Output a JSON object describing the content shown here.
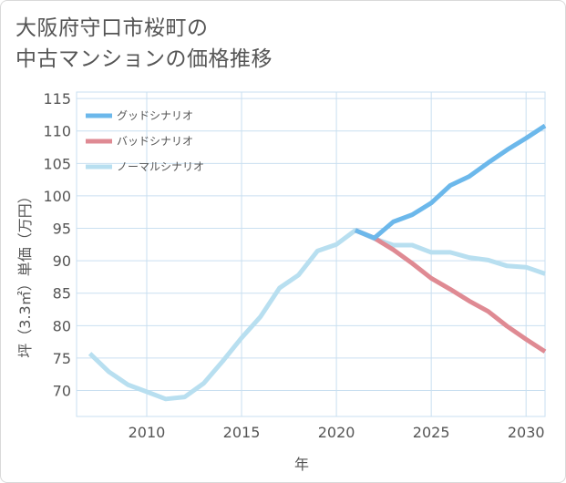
{
  "title": {
    "line1": "大阪府守口市桜町の",
    "line2": "中古マンションの価格推移"
  },
  "chart_data": {
    "type": "line",
    "xlabel": "年",
    "ylabel": "坪（3.3㎡）単価（万円）",
    "xlim": [
      2006.3,
      2031
    ],
    "ylim": [
      66,
      116
    ],
    "xticks": [
      2010,
      2015,
      2020,
      2025,
      2030
    ],
    "yticks": [
      70,
      75,
      80,
      85,
      90,
      95,
      100,
      105,
      110,
      115
    ],
    "grid": true,
    "legend_position": "top-left",
    "series": [
      {
        "name": "グッドシナリオ",
        "color": "#6cb8eb",
        "x": [
          2021,
          2022,
          2023,
          2024,
          2025,
          2026,
          2027,
          2028,
          2029,
          2030,
          2031
        ],
        "y": [
          94.7,
          93.5,
          96.0,
          97.1,
          98.9,
          101.6,
          103.0,
          105.1,
          107.1,
          108.9,
          110.8
        ]
      },
      {
        "name": "バッドシナリオ",
        "color": "#df8a93",
        "x": [
          2021,
          2022,
          2023,
          2024,
          2025,
          2026,
          2027,
          2028,
          2029,
          2030,
          2031
        ],
        "y": [
          94.7,
          93.5,
          91.7,
          89.6,
          87.3,
          85.6,
          83.8,
          82.2,
          79.9,
          77.9,
          76.0
        ]
      },
      {
        "name": "ノーマルシナリオ",
        "color": "#b8dff0",
        "x": [
          2007,
          2008,
          2009,
          2010,
          2011,
          2012,
          2013,
          2014,
          2015,
          2016,
          2017,
          2018,
          2019,
          2020,
          2021,
          2022,
          2023,
          2024,
          2025,
          2026,
          2027,
          2028,
          2029,
          2030,
          2031
        ],
        "y": [
          75.7,
          72.9,
          70.9,
          69.8,
          68.7,
          69.0,
          71.1,
          74.5,
          78.1,
          81.4,
          85.8,
          87.8,
          91.5,
          92.5,
          94.7,
          93.4,
          92.4,
          92.4,
          91.3,
          91.3,
          90.5,
          90.1,
          89.2,
          89.0,
          88.0
        ]
      }
    ]
  }
}
